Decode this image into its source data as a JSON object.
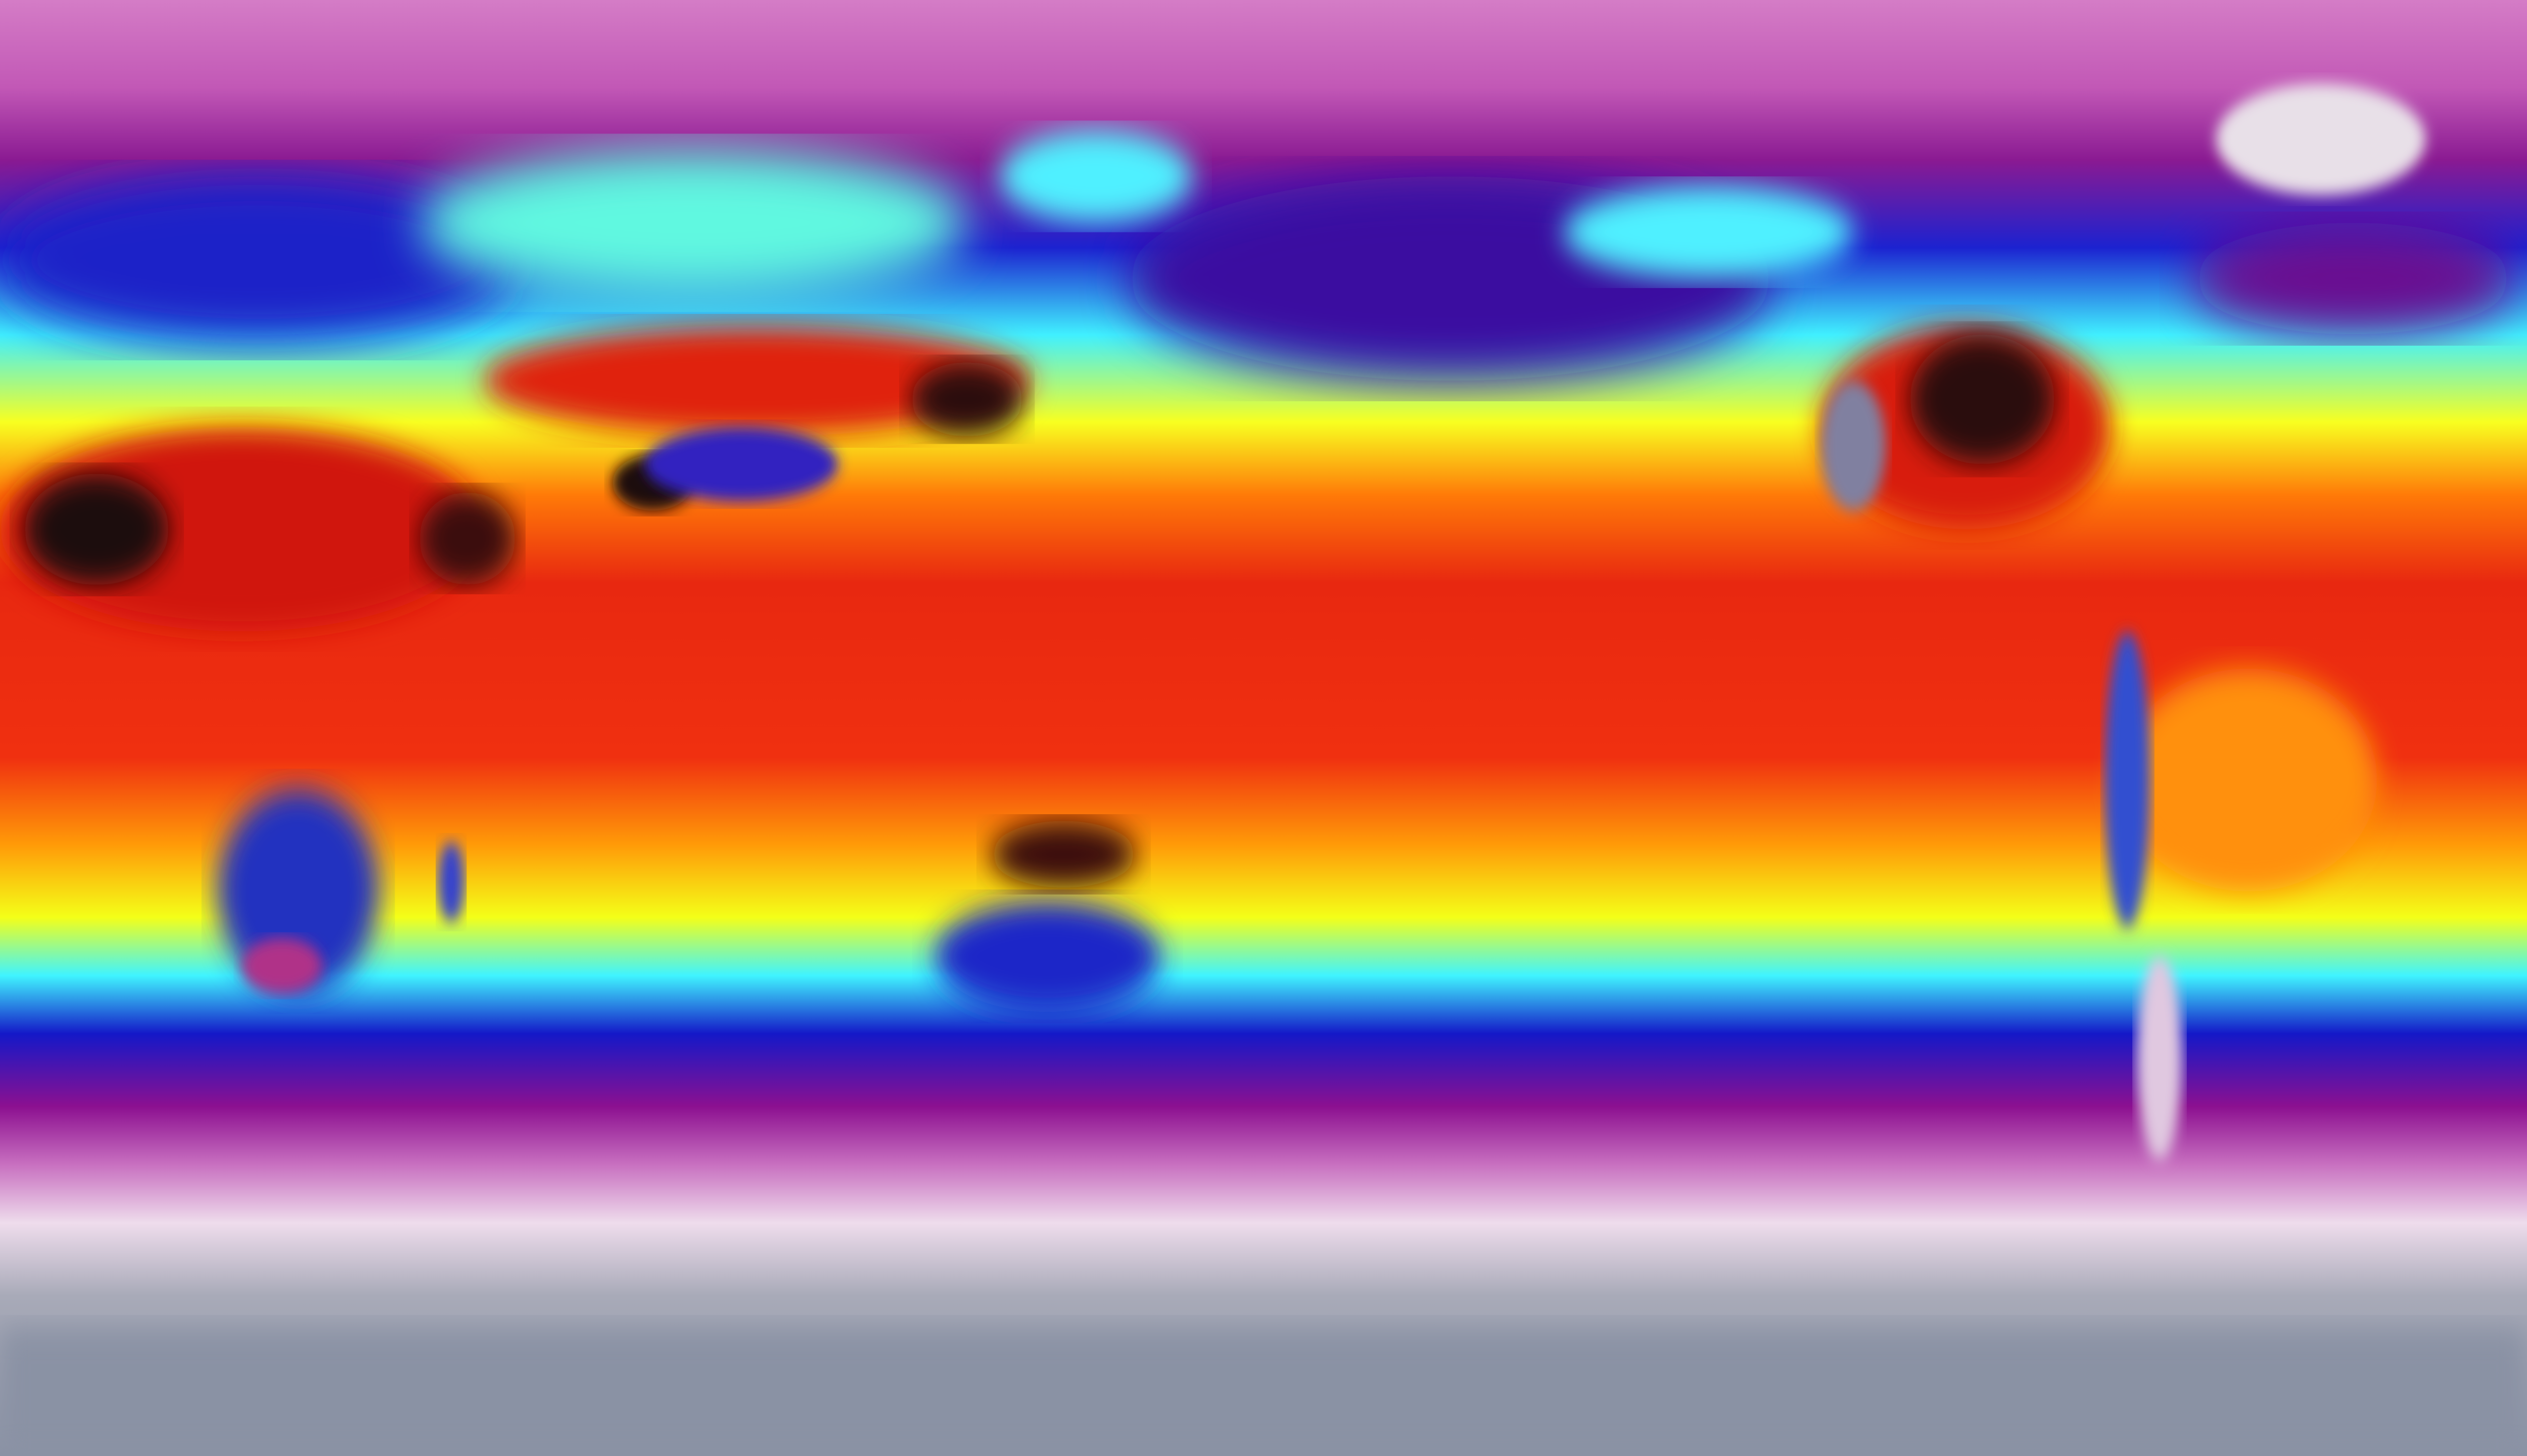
{
  "map": {
    "projection": "equirectangular",
    "variable_colormap": [
      "#d47cc6",
      "#9a1896",
      "#1c1ccc",
      "#00d8ff",
      "#58ffff",
      "#ffff00",
      "#ff8c00",
      "#e81c0c",
      "#1c0c0c",
      "#f2e4f0",
      "#8a92a2"
    ],
    "band_colors": {
      "arctic_top": "#d47cc6",
      "north_purple": "#8a1a92",
      "north_blue": "#1c22d0",
      "north_cyan": "#40f0ff",
      "north_yellow": "#f8ff20",
      "tropics_orange": "#ff7a08",
      "tropics_red": "#e82810",
      "south_yellow": "#f4ff18",
      "south_cyan": "#40f4ff",
      "south_blue": "#1418c8",
      "south_purple": "#8c1090",
      "southern_white": "#eedcec",
      "antarctic_gray": "#8a92a4"
    },
    "feature_colors": {
      "hot_desert": "#1a0a0a",
      "cold_land": "#2030c0",
      "ice_sheet": "#e8e0e8",
      "warm_land": "#ff9010"
    }
  }
}
